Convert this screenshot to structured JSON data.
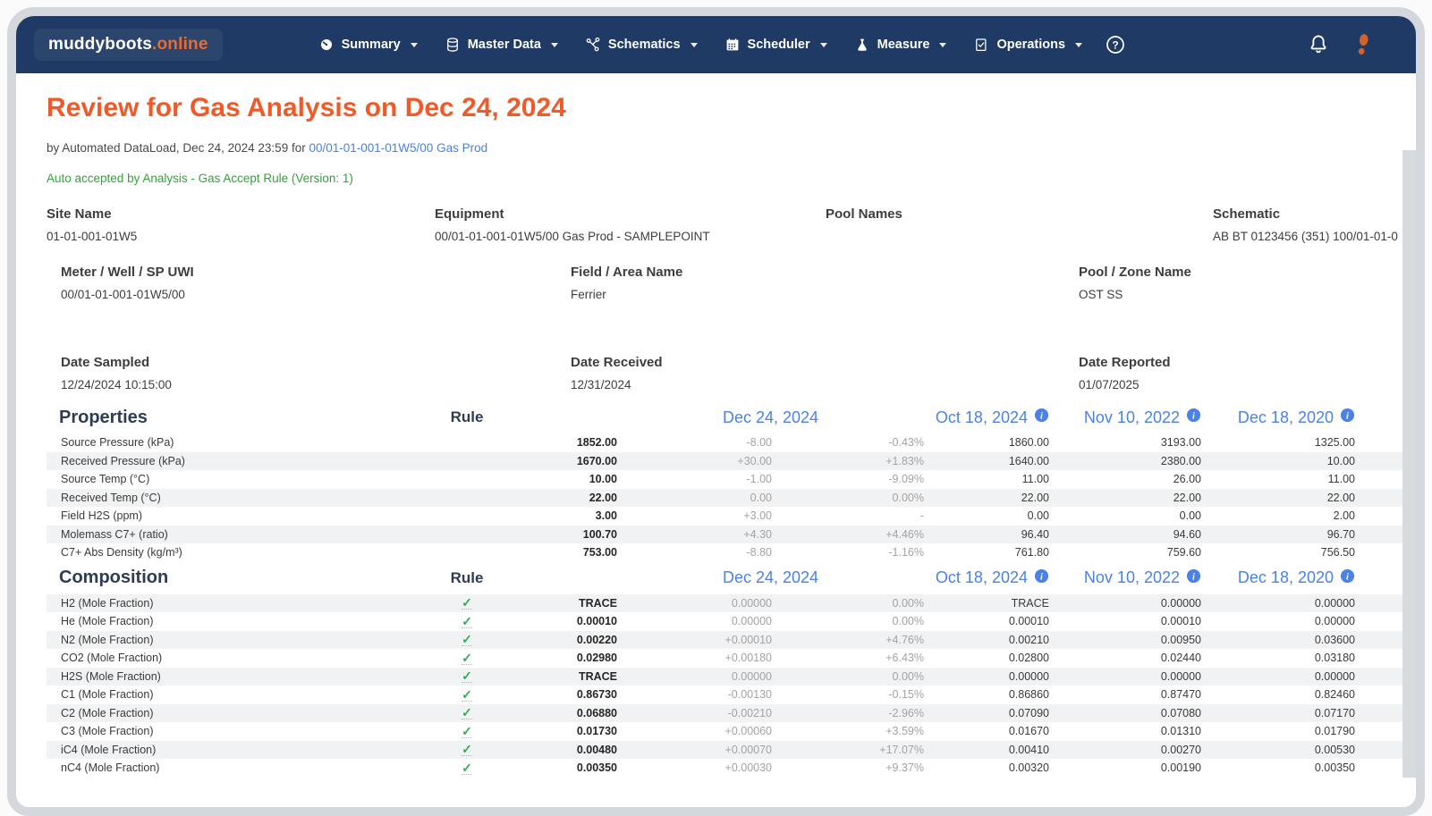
{
  "theme": {
    "navbar_navy": "#1f3a64",
    "logo_orange": "#ed6a2f",
    "title_orange": "#f05a28",
    "link_blue": "#4483e6",
    "header_date_blue": "#4a82e8",
    "status_green": "#35a13d",
    "check_green": "#2fae52",
    "row_shade": "#f1f2f3",
    "frame_gray": "#d4d8dc"
  },
  "nav": {
    "logo_brand": "muddyboots",
    "logo_domain": ".online",
    "items": [
      {
        "label": "Summary",
        "icon": "gauge-icon"
      },
      {
        "label": "Master Data",
        "icon": "database-icon"
      },
      {
        "label": "Schematics",
        "icon": "schematic-icon"
      },
      {
        "label": "Scheduler",
        "icon": "calendar-icon"
      },
      {
        "label": "Measure",
        "icon": "flask-icon"
      },
      {
        "label": "Operations",
        "icon": "checklist-icon"
      }
    ],
    "help_icon": "help-circle-icon",
    "right_icons": [
      "bell-icon",
      "bootprint-icon"
    ]
  },
  "page": {
    "title": "Review for Gas Analysis on Dec 24, 2024",
    "byline_prefix": "by Automated DataLoad, Dec 24, 2024 23:59 for ",
    "byline_link": "00/01-01-001-01W5/00 Gas Prod",
    "status": "Auto accepted by Analysis - Gas Accept Rule (Version: 1)"
  },
  "info": {
    "site_name": {
      "label": "Site Name",
      "value": "01-01-001-01W5"
    },
    "equipment": {
      "label": "Equipment",
      "value": "00/01-01-001-01W5/00 Gas Prod - SAMPLEPOINT"
    },
    "pool_names": {
      "label": "Pool Names",
      "value": ""
    },
    "schematic": {
      "label": "Schematic",
      "value": "AB BT 0123456 (351) 100/01-01-0"
    },
    "meter": {
      "label": "Meter / Well / SP UWI",
      "value": "00/01-01-001-01W5/00"
    },
    "field_area": {
      "label": "Field / Area Name",
      "value": "Ferrier"
    },
    "pool_zone": {
      "label": "Pool / Zone Name",
      "value": "OST SS"
    },
    "date_sampled": {
      "label": "Date Sampled",
      "value": "12/24/2024 10:15:00"
    },
    "date_received": {
      "label": "Date Received",
      "value": "12/31/2024"
    },
    "date_reported": {
      "label": "Date Reported",
      "value": "01/07/2025"
    }
  },
  "table_headers": {
    "rule": "Rule",
    "current_date": "Dec 24, 2024",
    "history": [
      "Oct 18, 2024",
      "Nov 10, 2022",
      "Dec 18, 2020"
    ]
  },
  "properties": {
    "title": "Properties",
    "rows": [
      {
        "label": "Source Pressure (kPa)",
        "check": false,
        "value": "1852.00",
        "delta": "-8.00",
        "pct": "-0.43%",
        "h1": "1860.00",
        "h2": "3193.00",
        "h3": "1325.00"
      },
      {
        "label": "Received Pressure (kPa)",
        "check": false,
        "value": "1670.00",
        "delta": "+30.00",
        "pct": "+1.83%",
        "h1": "1640.00",
        "h2": "2380.00",
        "h3": "10.00"
      },
      {
        "label": "Source Temp (°C)",
        "check": false,
        "value": "10.00",
        "delta": "-1.00",
        "pct": "-9.09%",
        "h1": "11.00",
        "h2": "26.00",
        "h3": "11.00"
      },
      {
        "label": "Received Temp (°C)",
        "check": false,
        "value": "22.00",
        "delta": "0.00",
        "pct": "0.00%",
        "h1": "22.00",
        "h2": "22.00",
        "h3": "22.00"
      },
      {
        "label": "Field H2S (ppm)",
        "check": false,
        "value": "3.00",
        "delta": "+3.00",
        "pct": "-",
        "h1": "0.00",
        "h2": "0.00",
        "h3": "2.00"
      },
      {
        "label": "Molemass C7+ (ratio)",
        "check": false,
        "value": "100.70",
        "delta": "+4.30",
        "pct": "+4.46%",
        "h1": "96.40",
        "h2": "94.60",
        "h3": "96.70"
      },
      {
        "label": "C7+ Abs Density (kg/m³)",
        "check": false,
        "value": "753.00",
        "delta": "-8.80",
        "pct": "-1.16%",
        "h1": "761.80",
        "h2": "759.60",
        "h3": "756.50"
      }
    ]
  },
  "composition": {
    "title": "Composition",
    "rows": [
      {
        "label": "H2 (Mole Fraction)",
        "check": true,
        "value": "TRACE",
        "delta": "0.00000",
        "pct": "0.00%",
        "h1": "TRACE",
        "h2": "0.00000",
        "h3": "0.00000"
      },
      {
        "label": "He (Mole Fraction)",
        "check": true,
        "value": "0.00010",
        "delta": "0.00000",
        "pct": "0.00%",
        "h1": "0.00010",
        "h2": "0.00010",
        "h3": "0.00000"
      },
      {
        "label": "N2 (Mole Fraction)",
        "check": true,
        "value": "0.00220",
        "delta": "+0.00010",
        "pct": "+4.76%",
        "h1": "0.00210",
        "h2": "0.00950",
        "h3": "0.03600"
      },
      {
        "label": "CO2 (Mole Fraction)",
        "check": true,
        "value": "0.02980",
        "delta": "+0.00180",
        "pct": "+6.43%",
        "h1": "0.02800",
        "h2": "0.02440",
        "h3": "0.03180"
      },
      {
        "label": "H2S (Mole Fraction)",
        "check": true,
        "value": "TRACE",
        "delta": "0.00000",
        "pct": "0.00%",
        "h1": "0.00000",
        "h2": "0.00000",
        "h3": "0.00000"
      },
      {
        "label": "C1 (Mole Fraction)",
        "check": true,
        "value": "0.86730",
        "delta": "-0.00130",
        "pct": "-0.15%",
        "h1": "0.86860",
        "h2": "0.87470",
        "h3": "0.82460"
      },
      {
        "label": "C2 (Mole Fraction)",
        "check": true,
        "value": "0.06880",
        "delta": "-0.00210",
        "pct": "-2.96%",
        "h1": "0.07090",
        "h2": "0.07080",
        "h3": "0.07170"
      },
      {
        "label": "C3 (Mole Fraction)",
        "check": true,
        "value": "0.01730",
        "delta": "+0.00060",
        "pct": "+3.59%",
        "h1": "0.01670",
        "h2": "0.01310",
        "h3": "0.01790"
      },
      {
        "label": "iC4 (Mole Fraction)",
        "check": true,
        "value": "0.00480",
        "delta": "+0.00070",
        "pct": "+17.07%",
        "h1": "0.00410",
        "h2": "0.00270",
        "h3": "0.00530"
      },
      {
        "label": "nC4 (Mole Fraction)",
        "check": true,
        "value": "0.00350",
        "delta": "+0.00030",
        "pct": "+9.37%",
        "h1": "0.00320",
        "h2": "0.00190",
        "h3": "0.00350"
      }
    ]
  }
}
